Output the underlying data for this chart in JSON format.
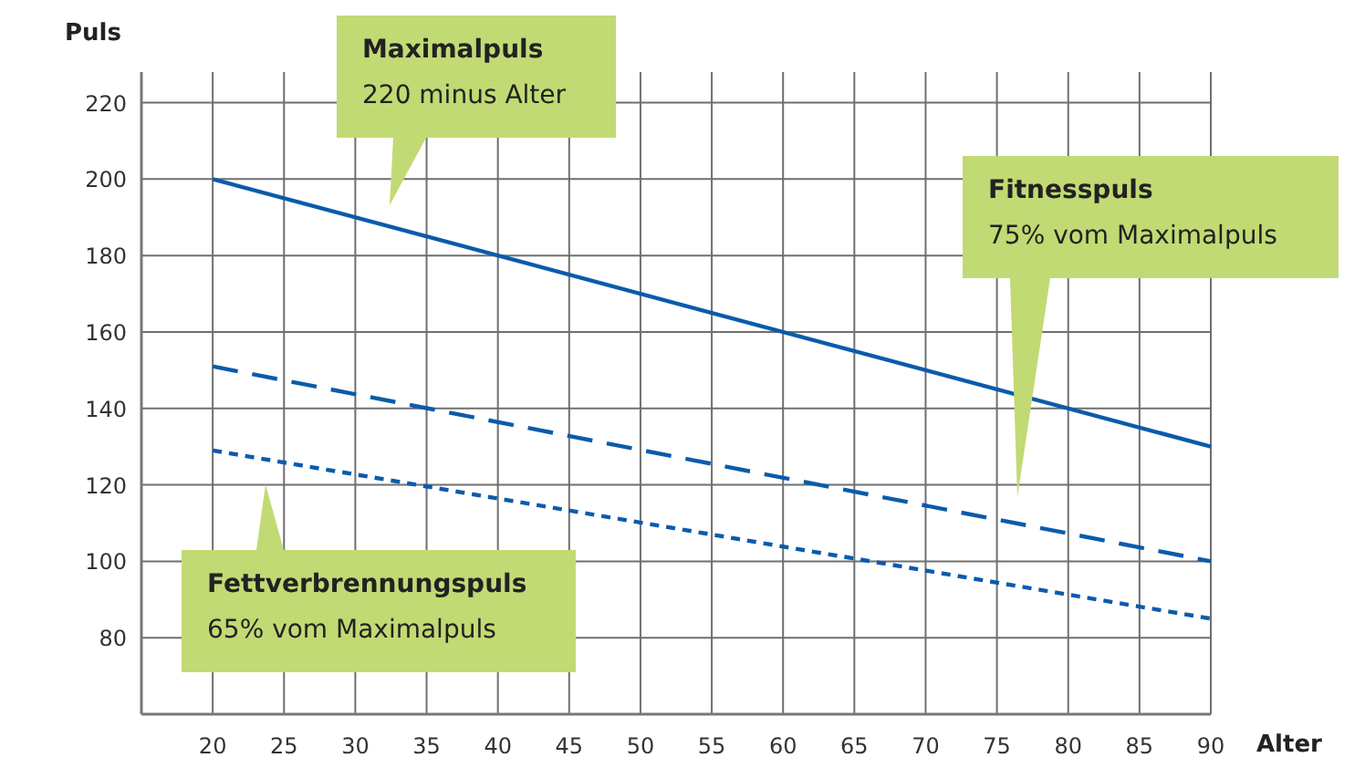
{
  "chart_data": {
    "type": "line",
    "xlabel": "Alter",
    "ylabel": "Puls",
    "x": [
      20,
      90
    ],
    "xlim": [
      15,
      90
    ],
    "xticks": [
      20,
      25,
      30,
      35,
      40,
      45,
      50,
      55,
      60,
      65,
      70,
      75,
      80,
      85,
      90
    ],
    "ylim": [
      60,
      228
    ],
    "yticks": [
      80,
      100,
      120,
      140,
      160,
      180,
      200,
      220
    ],
    "grid": true,
    "series": [
      {
        "color": "#0a5bab",
        "values": [
          200,
          130
        ],
        "line_style": "solid"
      },
      {
        "color": "#0a5bab",
        "values": [
          151,
          100
        ],
        "line_style": "dashed"
      },
      {
        "color": "#0a5bab",
        "values": [
          129,
          85
        ],
        "line_style": "dotted"
      }
    ],
    "annotations": [
      "Maximalpuls\n220 minus Alter",
      "Fitnesspuls\n75% vom Maximalpuls",
      "Fettverbrennungspuls\n65% vom Maximalpuls"
    ]
  }
}
